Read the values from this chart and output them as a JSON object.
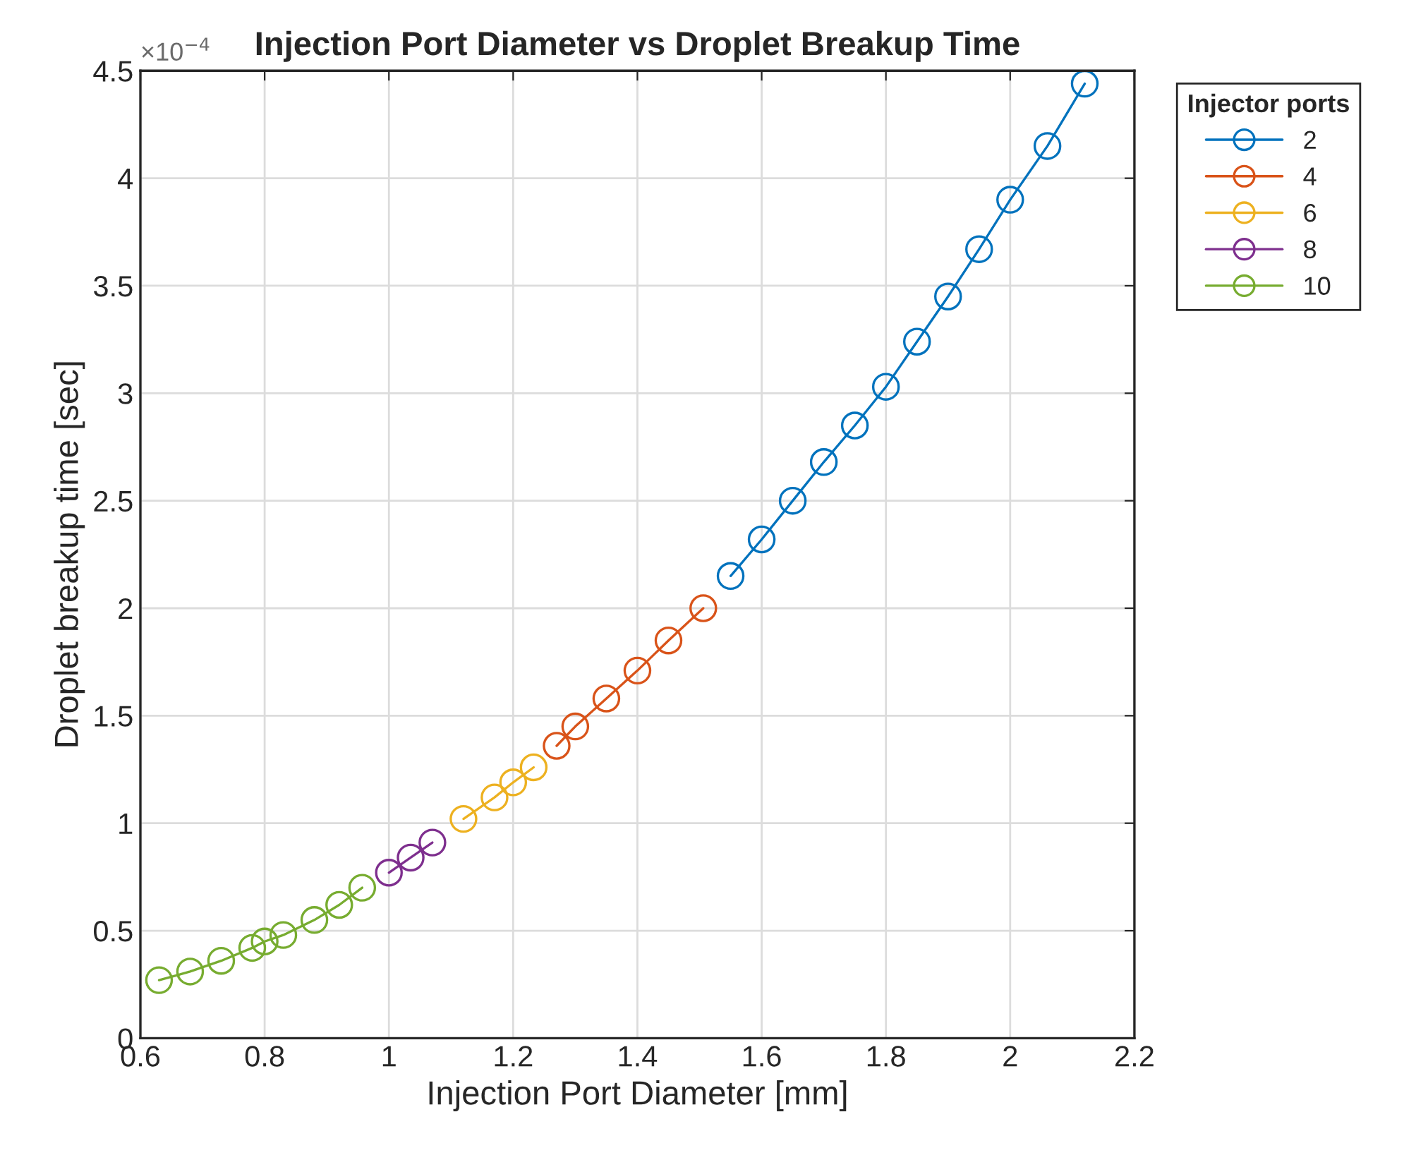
{
  "chart_data": {
    "type": "line",
    "title": "Injection Port Diameter vs Droplet Breakup Time",
    "xlabel": "Injection Port Diameter [mm]",
    "ylabel": "Droplet breakup time [sec]",
    "legend_title": "Injector ports",
    "annotations": [
      "×10$^{−4}$"
    ],
    "xlim": [
      0.6,
      2.2
    ],
    "xticks": [
      0.6,
      0.8,
      1,
      1.2,
      1.4,
      1.6,
      1.8,
      2,
      2.2
    ],
    "ylim": [
      0,
      4.5
    ],
    "yticks": [
      0,
      0.5,
      1,
      1.5,
      2,
      2.5,
      3,
      3.5,
      4,
      4.5
    ],
    "grid": true,
    "legend": "top right",
    "marker": "circle",
    "line_style": "solid",
    "series": [
      {
        "name": "2",
        "color": "#0072bd",
        "x": [
          1.55,
          1.6,
          1.65,
          1.7,
          1.75,
          1.8,
          1.85,
          1.9,
          1.95,
          2.0,
          2.06,
          2.12
        ],
        "values": [
          2.15,
          2.32,
          2.5,
          2.68,
          2.85,
          3.03,
          3.24,
          3.45,
          3.67,
          3.9,
          4.15,
          4.44
        ]
      },
      {
        "name": "4",
        "color": "#d95319",
        "x": [
          1.27,
          1.3,
          1.35,
          1.4,
          1.45,
          1.506
        ],
        "values": [
          1.36,
          1.45,
          1.58,
          1.71,
          1.85,
          2.0
        ]
      },
      {
        "name": "6",
        "color": "#edb120",
        "x": [
          1.12,
          1.17,
          1.2,
          1.233
        ],
        "values": [
          1.02,
          1.12,
          1.19,
          1.26
        ]
      },
      {
        "name": "8",
        "color": "#7e2f8e",
        "x": [
          1.0,
          1.035,
          1.07
        ],
        "values": [
          0.77,
          0.84,
          0.91
        ]
      },
      {
        "name": "10",
        "color": "#77ac30",
        "x": [
          0.63,
          0.68,
          0.73,
          0.78,
          0.8,
          0.83,
          0.88,
          0.92,
          0.957
        ],
        "values": [
          0.27,
          0.31,
          0.36,
          0.42,
          0.45,
          0.48,
          0.55,
          0.62,
          0.7
        ]
      }
    ]
  }
}
